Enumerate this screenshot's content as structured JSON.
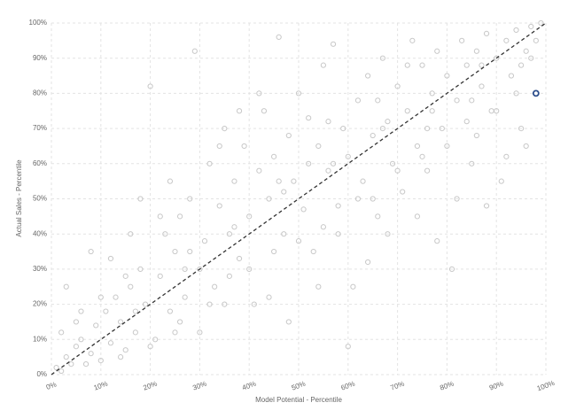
{
  "chart_data": {
    "type": "scatter",
    "x_label": "Model Potential - Percentile",
    "y_label": "Actual Sales - Percentile",
    "xlim": [
      0,
      100
    ],
    "ylim": [
      0,
      100
    ],
    "xticks": [
      {
        "value": 0,
        "label": "0%"
      },
      {
        "value": 10,
        "label": "10%"
      },
      {
        "value": 20,
        "label": "20%"
      },
      {
        "value": 30,
        "label": "30%"
      },
      {
        "value": 40,
        "label": "40%"
      },
      {
        "value": 50,
        "label": "50%"
      },
      {
        "value": 60,
        "label": "60%"
      },
      {
        "value": 70,
        "label": "70%"
      },
      {
        "value": 80,
        "label": "80%"
      },
      {
        "value": 90,
        "label": "90%"
      },
      {
        "value": 100,
        "label": "100%"
      }
    ],
    "yticks": [
      {
        "value": 0,
        "label": "0%"
      },
      {
        "value": 10,
        "label": "10%"
      },
      {
        "value": 20,
        "label": "20%"
      },
      {
        "value": 30,
        "label": "30%"
      },
      {
        "value": 40,
        "label": "40%"
      },
      {
        "value": 50,
        "label": "50%"
      },
      {
        "value": 60,
        "label": "60%"
      },
      {
        "value": 70,
        "label": "70%"
      },
      {
        "value": 80,
        "label": "80%"
      },
      {
        "value": 90,
        "label": "90%"
      },
      {
        "value": 100,
        "label": "100%"
      }
    ],
    "grid": true,
    "point_color": "#c8c8c8",
    "x": [
      1,
      2,
      3,
      4,
      5,
      2,
      6,
      8,
      9,
      10,
      11,
      12,
      13,
      14,
      15,
      16,
      17,
      18,
      19,
      20,
      21,
      22,
      23,
      24,
      25,
      26,
      27,
      28,
      29,
      30,
      31,
      32,
      33,
      34,
      35,
      36,
      37,
      38,
      39,
      40,
      41,
      42,
      43,
      44,
      45,
      46,
      47,
      48,
      49,
      50,
      51,
      52,
      53,
      54,
      55,
      56,
      57,
      58,
      59,
      60,
      61,
      62,
      63,
      64,
      65,
      66,
      67,
      68,
      69,
      70,
      71,
      72,
      73,
      74,
      75,
      76,
      77,
      78,
      79,
      80,
      81,
      82,
      83,
      84,
      85,
      86,
      87,
      88,
      89,
      90,
      91,
      92,
      93,
      94,
      95,
      96,
      97,
      98,
      99,
      3,
      6,
      8,
      10,
      12,
      14,
      16,
      18,
      20,
      22,
      24,
      26,
      28,
      30,
      32,
      34,
      36,
      38,
      40,
      42,
      44,
      46,
      48,
      50,
      52,
      54,
      56,
      58,
      60,
      62,
      64,
      66,
      68,
      70,
      72,
      74,
      76,
      78,
      80,
      82,
      84,
      86,
      88,
      90,
      92,
      94,
      96,
      5,
      15,
      25,
      35,
      45,
      55,
      65,
      75,
      85,
      95,
      7,
      17,
      27,
      37,
      47,
      57,
      67,
      77,
      87,
      97
    ],
    "y": [
      2,
      1,
      5,
      3,
      8,
      12,
      10,
      6,
      14,
      4,
      18,
      9,
      22,
      15,
      7,
      25,
      12,
      30,
      20,
      82,
      10,
      28,
      40,
      18,
      35,
      45,
      22,
      50,
      92,
      30,
      38,
      60,
      25,
      48,
      70,
      40,
      55,
      33,
      65,
      45,
      20,
      58,
      75,
      50,
      62,
      96,
      40,
      68,
      55,
      80,
      47,
      73,
      35,
      65,
      88,
      58,
      94,
      48,
      70,
      62,
      25,
      78,
      55,
      85,
      68,
      45,
      90,
      72,
      60,
      82,
      52,
      75,
      95,
      65,
      88,
      58,
      80,
      92,
      70,
      85,
      30,
      78,
      95,
      88,
      60,
      92,
      82,
      97,
      75,
      90,
      55,
      95,
      85,
      98,
      70,
      92,
      99,
      95,
      100,
      25,
      18,
      35,
      22,
      33,
      5,
      40,
      50,
      8,
      45,
      55,
      15,
      35,
      12,
      20,
      65,
      28,
      75,
      30,
      80,
      22,
      55,
      15,
      38,
      60,
      25,
      72,
      40,
      8,
      50,
      32,
      78,
      40,
      58,
      88,
      45,
      70,
      38,
      65,
      50,
      72,
      68,
      48,
      75,
      62,
      80,
      65,
      15,
      28,
      12,
      20,
      35,
      42,
      50,
      62,
      78,
      88,
      3,
      18,
      30,
      42,
      52,
      60,
      70,
      75,
      88,
      90
    ],
    "highlight": {
      "x": 98,
      "y": 80,
      "color": "#2d4e8c"
    },
    "reference_line": {
      "x": [
        0,
        100
      ],
      "y": [
        0,
        100
      ],
      "color": "#333333"
    }
  }
}
